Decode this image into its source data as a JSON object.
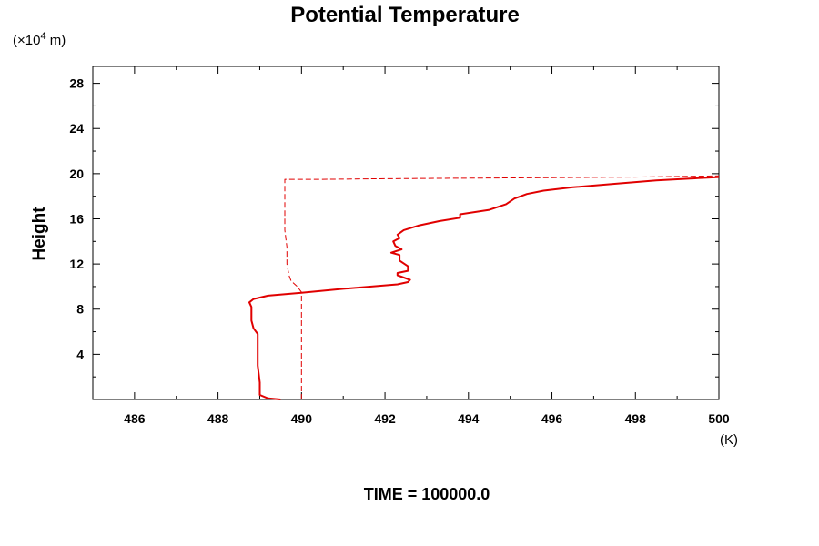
{
  "chart_data": {
    "type": "line",
    "title": "Potential Temperature",
    "ylabel": "Height",
    "y_unit_prefix": "(×10",
    "y_unit_exp": "4",
    "y_unit_suffix": " m)",
    "x_unit": "(K)",
    "footer": "TIME = 100000.0",
    "xlim": [
      485,
      500
    ],
    "ylim": [
      0,
      29.5
    ],
    "x_ticks": [
      486,
      488,
      490,
      492,
      494,
      496,
      498,
      500
    ],
    "x_tick_labels": [
      "486",
      "488",
      "490",
      "492",
      "494",
      "496",
      "498",
      "500"
    ],
    "y_ticks": [
      4,
      8,
      12,
      16,
      20,
      24,
      28
    ],
    "y_tick_labels": [
      "4",
      "8",
      "12",
      "16",
      "20",
      "24",
      "28"
    ],
    "grid": false,
    "series": [
      {
        "style": "solid",
        "color": "#e00000",
        "points": [
          [
            489.5,
            0.0
          ],
          [
            489.2,
            0.1
          ],
          [
            489.0,
            0.4
          ],
          [
            489.0,
            1.5
          ],
          [
            488.95,
            3.0
          ],
          [
            488.95,
            4.5
          ],
          [
            488.95,
            5.8
          ],
          [
            488.85,
            6.3
          ],
          [
            488.8,
            7.0
          ],
          [
            488.8,
            8.2
          ],
          [
            488.75,
            8.6
          ],
          [
            488.85,
            8.9
          ],
          [
            489.2,
            9.2
          ],
          [
            490.0,
            9.45
          ],
          [
            491.0,
            9.8
          ],
          [
            492.3,
            10.2
          ],
          [
            492.55,
            10.4
          ],
          [
            492.6,
            10.6
          ],
          [
            492.3,
            11.0
          ],
          [
            492.3,
            11.2
          ],
          [
            492.55,
            11.4
          ],
          [
            492.55,
            11.8
          ],
          [
            492.35,
            12.3
          ],
          [
            492.35,
            12.8
          ],
          [
            492.15,
            13.0
          ],
          [
            492.4,
            13.3
          ],
          [
            492.25,
            13.6
          ],
          [
            492.2,
            14.0
          ],
          [
            492.35,
            14.3
          ],
          [
            492.3,
            14.6
          ],
          [
            492.45,
            15.0
          ],
          [
            492.8,
            15.4
          ],
          [
            493.3,
            15.8
          ],
          [
            493.8,
            16.1
          ],
          [
            493.8,
            16.4
          ],
          [
            494.5,
            16.8
          ],
          [
            494.9,
            17.3
          ],
          [
            495.1,
            17.8
          ],
          [
            495.4,
            18.2
          ],
          [
            495.8,
            18.5
          ],
          [
            496.5,
            18.8
          ],
          [
            497.5,
            19.1
          ],
          [
            498.5,
            19.4
          ],
          [
            499.5,
            19.6
          ],
          [
            500.0,
            19.7
          ]
        ]
      },
      {
        "style": "dashed",
        "color": "#e00000",
        "points": [
          [
            490.0,
            0.0
          ],
          [
            490.0,
            9.5
          ],
          [
            489.9,
            10.0
          ],
          [
            489.75,
            10.5
          ],
          [
            489.7,
            11.0
          ],
          [
            489.65,
            12.0
          ],
          [
            489.65,
            13.5
          ],
          [
            489.6,
            15.0
          ],
          [
            489.6,
            17.0
          ],
          [
            489.6,
            19.5
          ],
          [
            490.5,
            19.5
          ],
          [
            492.0,
            19.55
          ],
          [
            494.0,
            19.6
          ],
          [
            496.0,
            19.65
          ],
          [
            498.0,
            19.7
          ],
          [
            500.0,
            19.8
          ]
        ]
      }
    ]
  }
}
